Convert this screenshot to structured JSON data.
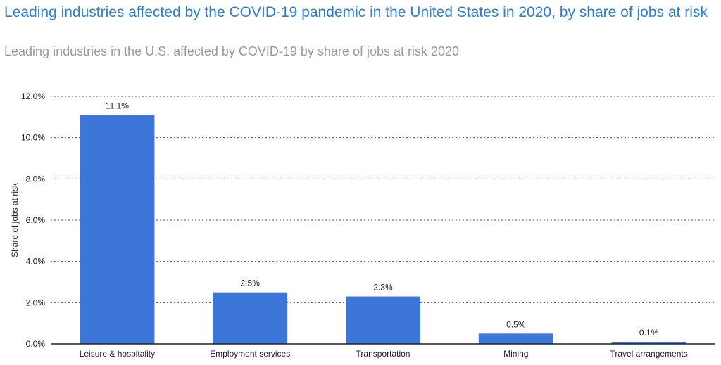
{
  "header": {
    "title": "Leading industries affected by the COVID-19 pandemic in the United States in 2020, by share of jobs at risk",
    "subtitle": "Leading industries in the U.S. affected by COVID-19 by share of jobs at risk 2020"
  },
  "chart_data": {
    "type": "bar",
    "categories": [
      "Leisure & hospitality",
      "Employment services",
      "Transportation",
      "Mining",
      "Travel arrangements"
    ],
    "values": [
      11.1,
      2.5,
      2.3,
      0.5,
      0.1
    ],
    "data_labels": [
      "11.1%",
      "2.5%",
      "2.3%",
      "0.5%",
      "0.1%"
    ],
    "ylabel": "Share of jobs at risk",
    "xlabel": "",
    "ylim": [
      0,
      12
    ],
    "yticks": [
      0,
      2,
      4,
      6,
      8,
      10,
      12
    ],
    "ytick_labels": [
      "0.0%",
      "2.0%",
      "4.0%",
      "6.0%",
      "8.0%",
      "10.0%",
      "12.0%"
    ],
    "grid": true,
    "legend": "none",
    "bar_color": "#3c76d9",
    "label_color": "#222222",
    "grid_color": "#555555"
  }
}
